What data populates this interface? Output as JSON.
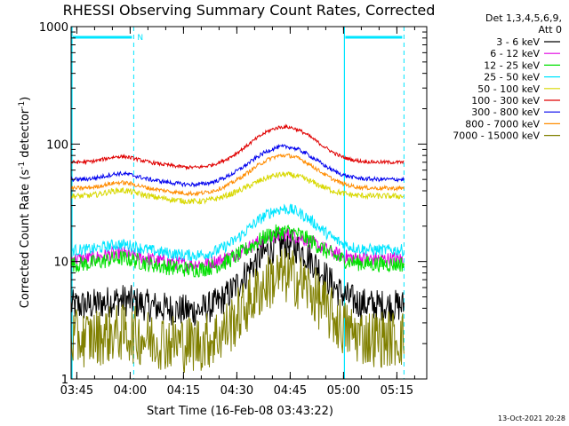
{
  "chart_data": {
    "type": "line",
    "title": "RHESSI Observing Summary Count Rates, Corrected",
    "ylabel_main": "Corrected Count Rate (s",
    "ylabel_sup1": "-1",
    "ylabel_mid": " detector",
    "ylabel_sup2": "-1",
    "ylabel_end": ")",
    "xlabel": "Start Time (16-Feb-08 03:43:22)",
    "y_scale": "log",
    "ylim": [
      1,
      1000
    ],
    "xlim_minutes": [
      0,
      100
    ],
    "x_tick_labels": [
      "03:45",
      "04:00",
      "04:15",
      "04:30",
      "04:45",
      "05:00",
      "05:15"
    ],
    "x_tick_minutes": [
      1.6,
      16.6,
      31.6,
      46.6,
      61.6,
      76.6,
      91.6
    ],
    "y_tick_labels": [
      "1",
      "10",
      "100",
      "1000"
    ],
    "y_tick_values": [
      1,
      10,
      100,
      1000
    ],
    "legend_header_1": "Det 1,3,4,5,6,9,",
    "legend_header_2": "Att 0",
    "legend_placement": "right",
    "night_flag_label": "N",
    "night_intervals_minutes": [
      [
        0,
        17.6
      ],
      [
        76.6,
        93.6
      ]
    ],
    "series": [
      {
        "name": "3 - 6 keV",
        "color": "#000000",
        "base": 4.2,
        "peak": 14,
        "noise": 0.28
      },
      {
        "name": "6 - 12 keV",
        "color": "#e000e0",
        "base": 10.5,
        "peak": 17,
        "noise": 0.12
      },
      {
        "name": "12 - 25 keV",
        "color": "#00e000",
        "base": 9.5,
        "peak": 18,
        "noise": 0.14
      },
      {
        "name": "25 - 50 keV",
        "color": "#00e5ff",
        "base": 12.5,
        "peak": 28,
        "noise": 0.1
      },
      {
        "name": "50 - 100 keV",
        "color": "#d8d800",
        "base": 36,
        "peak": 55,
        "noise": 0.05
      },
      {
        "name": "100 - 300 keV",
        "color": "#e00000",
        "base": 70,
        "peak": 140,
        "noise": 0.03
      },
      {
        "name": "300 - 800 keV",
        "color": "#0000ee",
        "base": 50,
        "peak": 95,
        "noise": 0.035
      },
      {
        "name": "800 - 7000 keV",
        "color": "#ff8c00",
        "base": 42,
        "peak": 80,
        "noise": 0.035
      },
      {
        "name": "7000 - 15000 keV",
        "color": "#808000",
        "base": 2.2,
        "peak": 7.5,
        "noise": 0.5
      }
    ]
  },
  "footer": {
    "timestamp": "13-Oct-2021 20:28"
  },
  "colors": {
    "night_bar": "#00e5ff",
    "axis": "#000000"
  }
}
